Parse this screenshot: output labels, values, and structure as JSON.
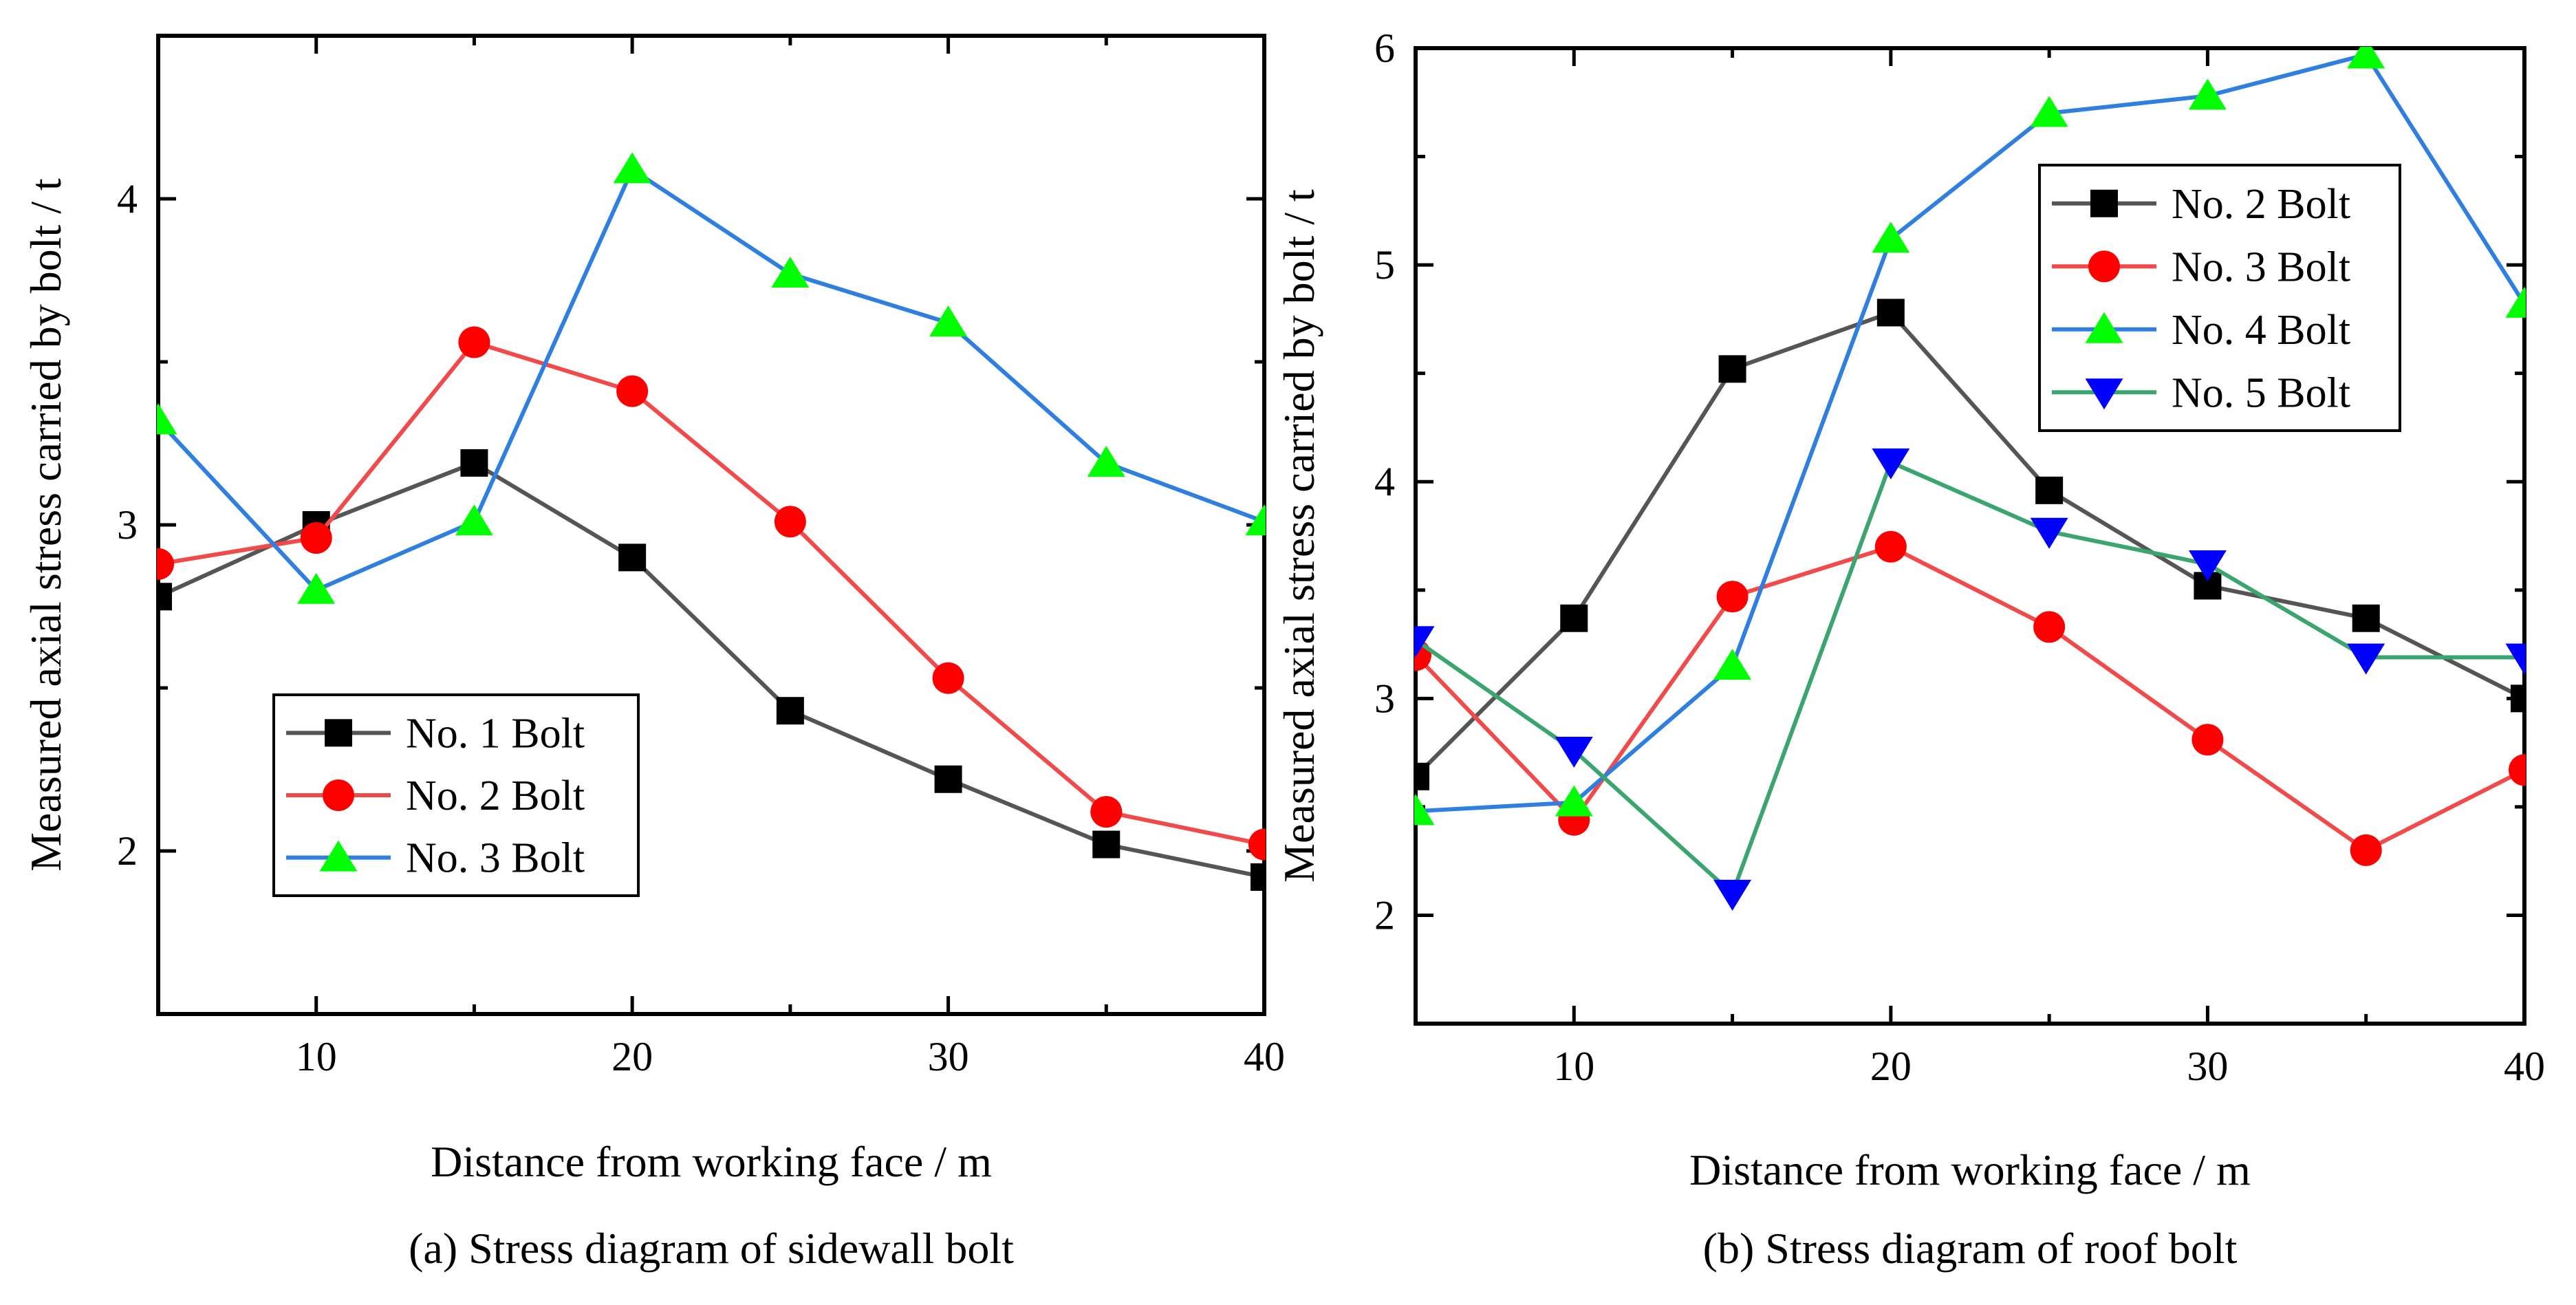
{
  "chart_data": [
    {
      "type": "line",
      "caption": "(a) Stress diagram of sidewall bolt",
      "xlabel": "Distance from working face / m",
      "ylabel": "Measured axial stress carried by bolt / t",
      "xlim": [
        5,
        40
      ],
      "ylim": [
        1.5,
        4.5
      ],
      "xticks": [
        10,
        20,
        30,
        40
      ],
      "yticks": [
        2,
        3,
        4
      ],
      "legend_position": "middle-left",
      "x": [
        5,
        10,
        15,
        20,
        25,
        30,
        35,
        40
      ],
      "series": [
        {
          "name": "No. 1 Bolt",
          "color": "#555555",
          "marker": "square",
          "marker_color": "#000000",
          "values": [
            2.78,
            3.0,
            3.19,
            2.9,
            2.43,
            2.22,
            2.02,
            1.92
          ]
        },
        {
          "name": "No. 2 Bolt",
          "color": "#f04a4a",
          "marker": "circle",
          "marker_color": "#ff0000",
          "values": [
            2.88,
            2.96,
            3.56,
            3.41,
            3.01,
            2.53,
            2.12,
            2.02
          ]
        },
        {
          "name": "No. 3 Bolt",
          "color": "#2f7fe0",
          "marker": "triangle-up",
          "marker_color": "#00ff00",
          "values": [
            3.32,
            2.8,
            3.01,
            4.09,
            3.77,
            3.62,
            3.19,
            3.01
          ]
        }
      ]
    },
    {
      "type": "line",
      "caption": "(b) Stress diagram of roof bolt",
      "xlabel": "Distance from working face / m",
      "ylabel": "Measured axial stress carried by bolt / t",
      "xlim": [
        5,
        40
      ],
      "ylim": [
        1.5,
        6
      ],
      "xticks": [
        10,
        20,
        30,
        40
      ],
      "yticks": [
        2,
        3,
        4,
        5,
        6
      ],
      "legend_position": "top-right",
      "x": [
        5,
        10,
        15,
        20,
        25,
        30,
        35,
        40
      ],
      "series": [
        {
          "name": "No. 2 Bolt",
          "color": "#555555",
          "marker": "square",
          "marker_color": "#000000",
          "values": [
            2.64,
            3.37,
            4.52,
            4.78,
            3.96,
            3.52,
            3.37,
            3.0
          ]
        },
        {
          "name": "No. 3 Bolt",
          "color": "#f04a4a",
          "marker": "circle",
          "marker_color": "#ff0000",
          "values": [
            3.2,
            2.44,
            3.47,
            3.7,
            3.33,
            2.81,
            2.3,
            2.67
          ]
        },
        {
          "name": "No. 4 Bolt",
          "color": "#2f7fe0",
          "marker": "triangle-up",
          "marker_color": "#00ff00",
          "values": [
            2.48,
            2.52,
            3.15,
            5.12,
            5.7,
            5.78,
            5.97,
            4.82
          ]
        },
        {
          "name": "No. 5 Bolt",
          "color": "#3aa56e",
          "marker": "triangle-down",
          "marker_color": "#0000ff",
          "values": [
            3.27,
            2.76,
            2.1,
            4.09,
            3.77,
            3.62,
            3.19,
            3.19
          ]
        }
      ]
    }
  ]
}
